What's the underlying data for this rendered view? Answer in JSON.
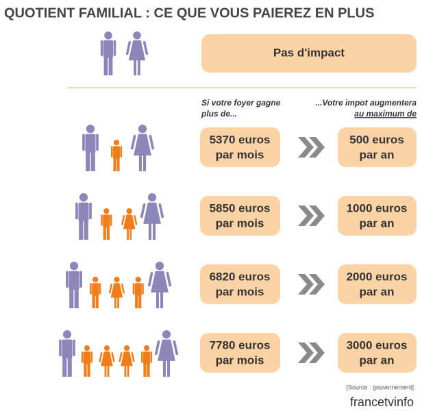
{
  "title": "QUOTIENT FAMILIAL : CE QUE VOUS PAIEREZ EN PLUS",
  "no_impact": "Pas d'impact",
  "header_left": [
    "Si votre foyer gagne",
    "plus de..."
  ],
  "header_right": [
    "...Votre impot augmentera",
    "au maximum de"
  ],
  "rows": [
    {
      "income": [
        "5370 euros",
        "par mois"
      ],
      "tax": [
        "500 euros",
        "par an"
      ]
    },
    {
      "income": [
        "5850 euros",
        "par mois"
      ],
      "tax": [
        "1000 euros",
        "par an"
      ]
    },
    {
      "income": [
        "6820 euros",
        "par mois"
      ],
      "tax": [
        "2000 euros",
        "par an"
      ]
    },
    {
      "income": [
        "7780 euros",
        "par mois"
      ],
      "tax": [
        "3000 euros",
        "par an"
      ]
    }
  ],
  "source": "[Source : gouvernement]",
  "logo": "francetvinfo"
}
